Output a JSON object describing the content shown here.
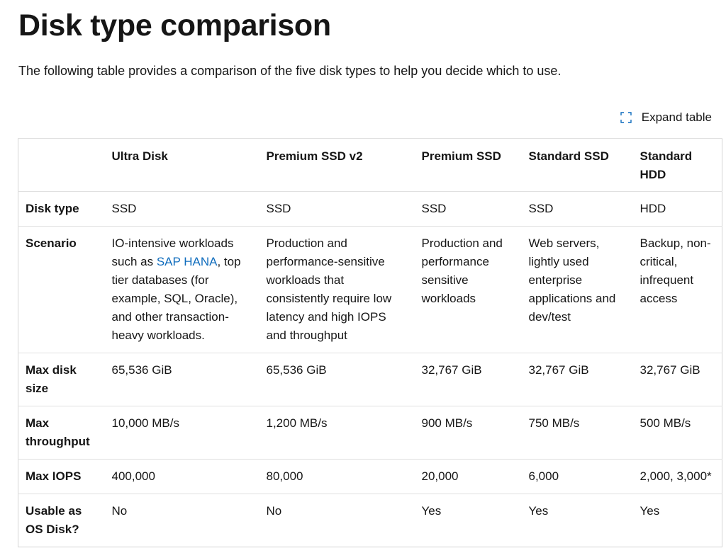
{
  "title": "Disk type comparison",
  "intro": "The following table provides a comparison of the five disk types to help you decide which to use.",
  "expand_label": "Expand table",
  "colors": {
    "link": "#0f6cbd",
    "icon": "#0f6cbd",
    "border": "#e0e0e0"
  },
  "table": {
    "headers": [
      "",
      "Ultra Disk",
      "Premium SSD v2",
      "Premium SSD",
      "Standard SSD",
      "Standard HDD"
    ],
    "rows": [
      {
        "label": "Disk type",
        "cells": [
          "SSD",
          "SSD",
          "SSD",
          "SSD",
          "HDD"
        ]
      },
      {
        "label": "Scenario",
        "cells": [
          "",
          "Production and performance-sensitive workloads that consistently require low latency and high IOPS and throughput",
          "Production and performance sensitive workloads",
          "Web servers, lightly used enterprise applications and dev/test",
          "Backup, non-critical, infrequent access"
        ],
        "ultra_scenario": {
          "before": "IO-intensive workloads such as ",
          "link": "SAP HANA",
          "after": ", top tier databases (for example, SQL, Oracle), and other transaction-heavy workloads."
        }
      },
      {
        "label": "Max disk size",
        "cells": [
          "65,536 GiB",
          "65,536 GiB",
          "32,767 GiB",
          "32,767 GiB",
          "32,767 GiB"
        ]
      },
      {
        "label": "Max throughput",
        "cells": [
          "10,000 MB/s",
          "1,200 MB/s",
          "900 MB/s",
          "750 MB/s",
          "500 MB/s"
        ]
      },
      {
        "label": "Max IOPS",
        "cells": [
          "400,000",
          "80,000",
          "20,000",
          "6,000",
          "2,000, 3,000*"
        ]
      },
      {
        "label": "Usable as OS Disk?",
        "cells": [
          "No",
          "No",
          "Yes",
          "Yes",
          "Yes"
        ]
      }
    ]
  }
}
